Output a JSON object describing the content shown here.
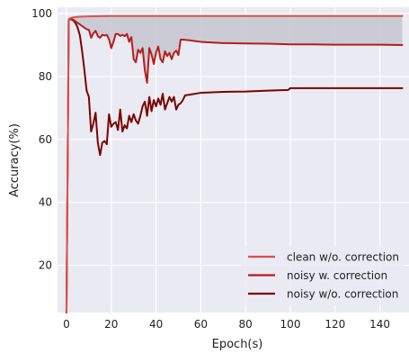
{
  "chart_data": {
    "type": "line",
    "title": "",
    "xlabel": "Epoch(s)",
    "ylabel": "Accuracy(%)",
    "xlim": [
      -4,
      153
    ],
    "ylim": [
      5,
      102
    ],
    "xticks": [
      0,
      20,
      40,
      60,
      80,
      100,
      120,
      140
    ],
    "yticks": [
      20,
      40,
      60,
      80,
      100
    ],
    "grid": true,
    "legend_position": "bottom-right",
    "shaded_region": {
      "between": [
        "clean w/o. correction",
        "noisy w. correction"
      ],
      "color": "#c8c8d2"
    },
    "colors": {
      "background": "#eaeaf2",
      "grid": "#ffffff",
      "clean w/o. correction": "#d9524f",
      "noisy w. correction": "#b51d1d",
      "noisy w/o. correction": "#7a0303"
    },
    "series": [
      {
        "name": "clean w/o. correction",
        "x": [
          0,
          1,
          2,
          4,
          6,
          10,
          20,
          40,
          60,
          100,
          150
        ],
        "y": [
          5,
          98.2,
          98.6,
          98.9,
          99,
          99.1,
          99.2,
          99.2,
          99.2,
          99.2,
          99.2
        ]
      },
      {
        "name": "noisy w. correction",
        "x": [
          0,
          1,
          2,
          3,
          4,
          5,
          6,
          7,
          8,
          9,
          10,
          11,
          12,
          13,
          14,
          15,
          16,
          17,
          18,
          19,
          20,
          21,
          22,
          23,
          24,
          25,
          26,
          27,
          28,
          29,
          30,
          31,
          32,
          33,
          34,
          35,
          36,
          37,
          38,
          39,
          40,
          41,
          42,
          43,
          44,
          45,
          46,
          47,
          48,
          49,
          50,
          51,
          52,
          55,
          60,
          70,
          80,
          90,
          100,
          110,
          120,
          130,
          140,
          150
        ],
        "y": [
          5,
          98,
          98.3,
          98,
          97.5,
          97,
          96.5,
          96,
          95.5,
          95,
          94.8,
          92.3,
          93.7,
          94.5,
          92.8,
          92.3,
          93.2,
          93,
          93.2,
          91.8,
          89,
          91,
          93.5,
          93.5,
          92.9,
          93.2,
          92.8,
          93.5,
          91,
          92.5,
          85.5,
          84.5,
          88.5,
          87.5,
          89,
          82,
          78,
          89,
          87,
          84,
          87.5,
          89.5,
          85.5,
          84.5,
          88,
          86.5,
          87.5,
          85.5,
          87.5,
          88.2,
          86.8,
          91.7,
          91.7,
          91.5,
          91,
          90.6,
          90.5,
          90.4,
          90.2,
          90.2,
          90.1,
          90.1,
          90.1,
          90
        ]
      },
      {
        "name": "noisy w/o. correction",
        "x": [
          0,
          1,
          2,
          3,
          4,
          5,
          6,
          7,
          8,
          9,
          10,
          11,
          12,
          13,
          14,
          15,
          16,
          17,
          18,
          19,
          20,
          21,
          22,
          23,
          24,
          25,
          26,
          27,
          28,
          29,
          30,
          31,
          32,
          33,
          34,
          35,
          36,
          37,
          38,
          39,
          40,
          41,
          42,
          43,
          44,
          45,
          46,
          47,
          48,
          49,
          50,
          51,
          52,
          53,
          55,
          60,
          70,
          80,
          90,
          99,
          100,
          110,
          120,
          130,
          140,
          150
        ],
        "y": [
          5,
          98,
          98.2,
          97.8,
          97,
          95.5,
          93,
          88,
          82,
          75.5,
          73.5,
          62.5,
          65,
          68.5,
          59,
          55,
          59,
          59.5,
          58.5,
          68,
          64,
          65,
          65.5,
          63,
          69.5,
          62.5,
          64.5,
          63.5,
          67.5,
          65.5,
          68,
          66,
          65,
          67.5,
          70.5,
          72,
          67.5,
          73.5,
          69,
          72.5,
          70.5,
          73,
          71,
          74.5,
          69.5,
          71.5,
          73.5,
          72,
          73.5,
          69.5,
          71,
          71.5,
          72.5,
          74,
          74.2,
          74.8,
          75.1,
          75.2,
          75.5,
          75.7,
          76.3,
          76.3,
          76.3,
          76.3,
          76.3,
          76.3
        ]
      }
    ]
  }
}
